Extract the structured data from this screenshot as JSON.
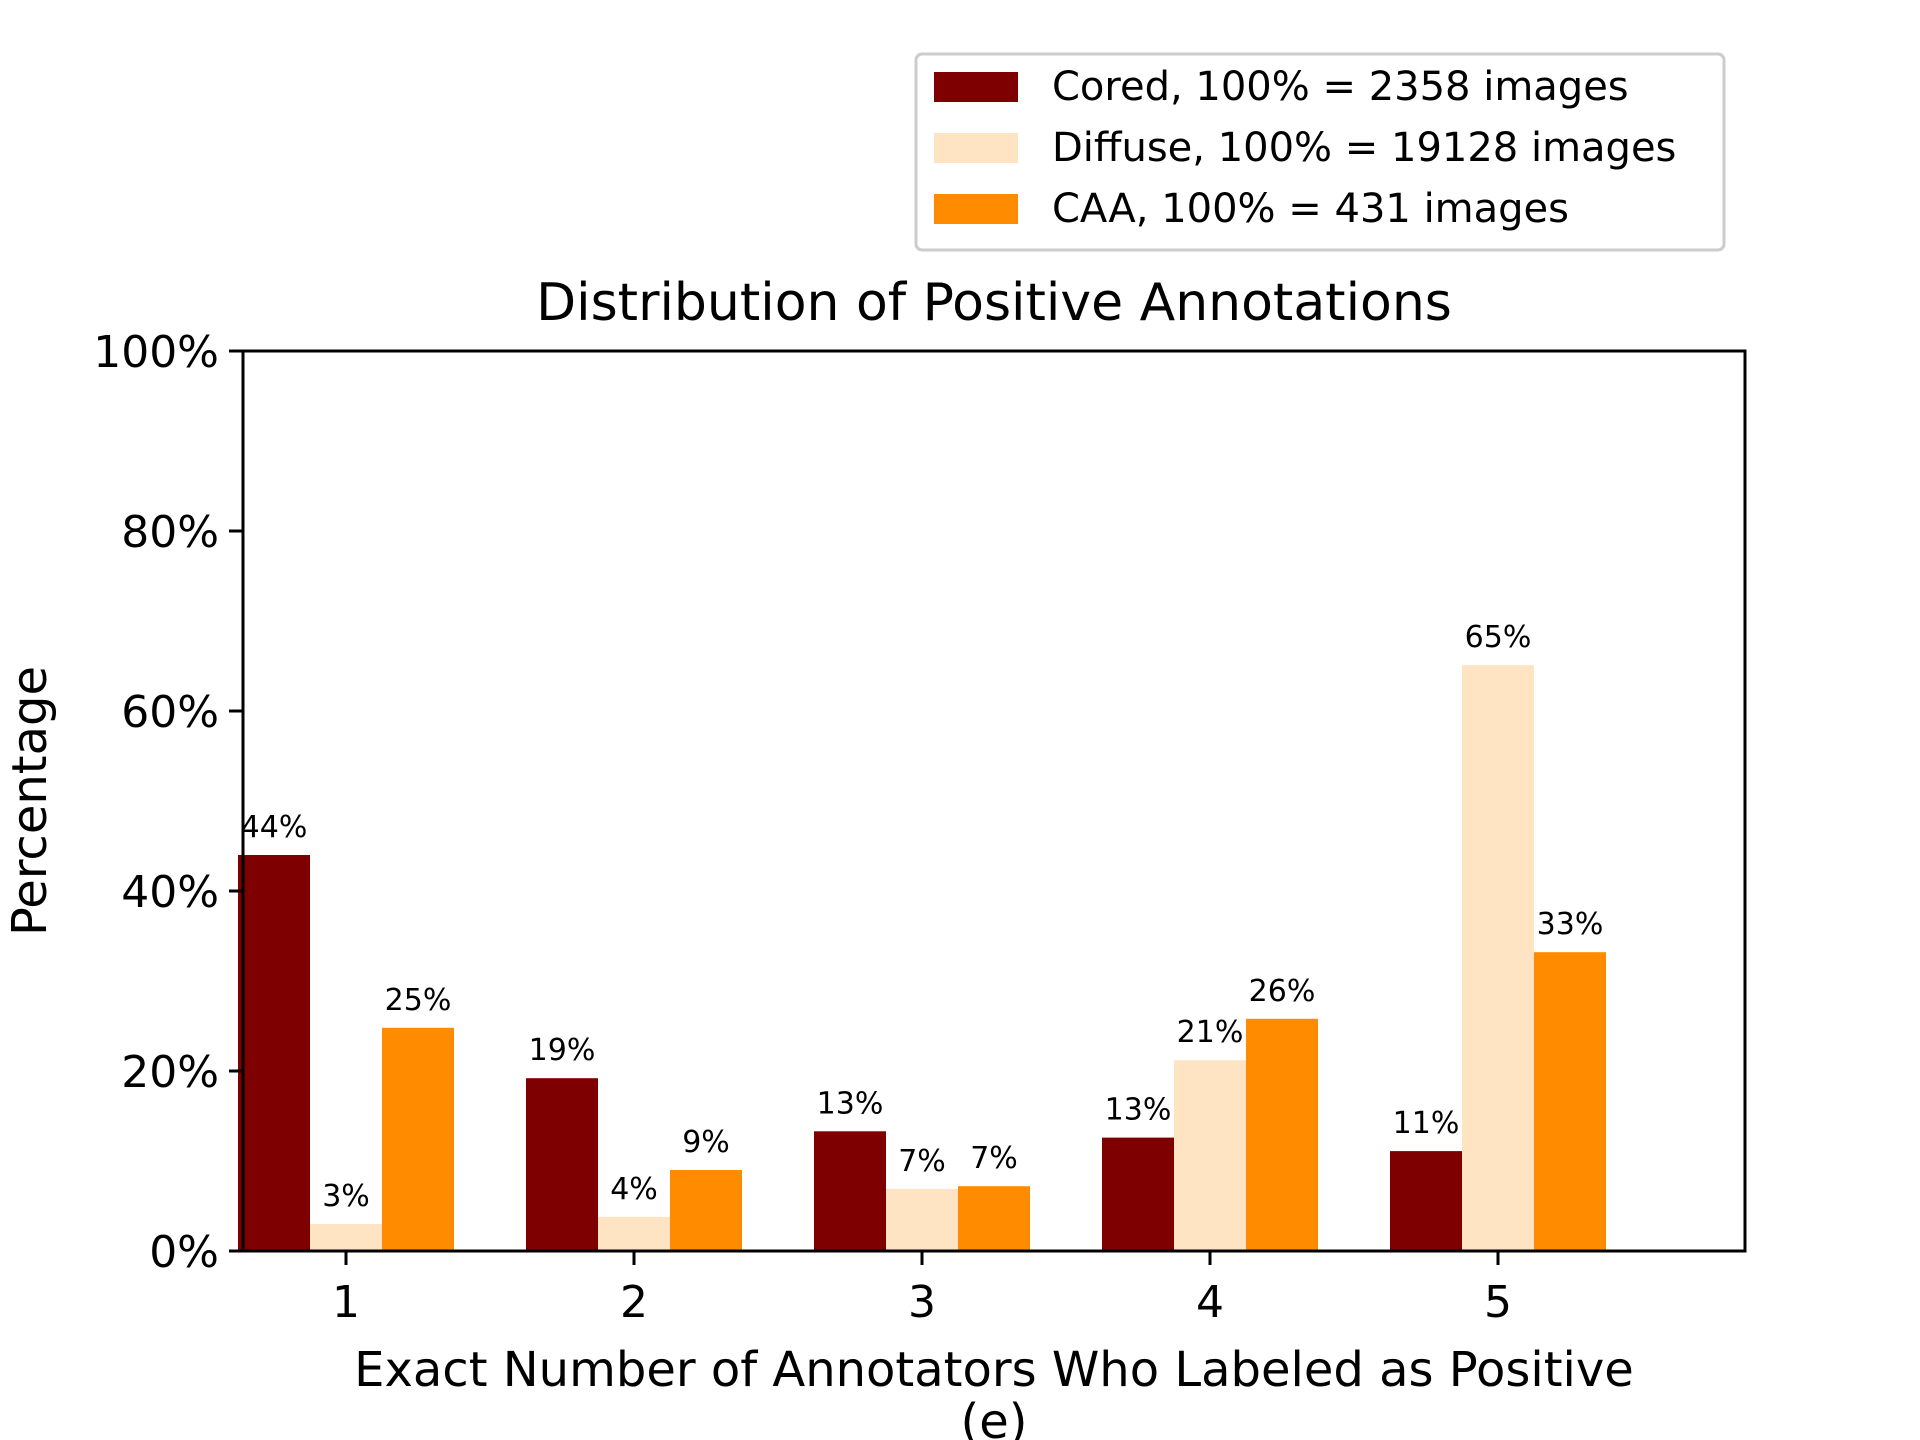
{
  "chart_data": {
    "type": "bar",
    "title": "Distribution of Positive Annotations",
    "xlabel": "Exact Number of Annotators Who Labeled as Positive",
    "xlabel_sub": "(e)",
    "ylabel": "Percentage",
    "categories": [
      "1",
      "2",
      "3",
      "4",
      "5"
    ],
    "ylim": [
      0,
      100
    ],
    "yticks": [
      0,
      20,
      40,
      60,
      80,
      100
    ],
    "ytick_labels": [
      "0%",
      "20%",
      "40%",
      "60%",
      "80%",
      "100%"
    ],
    "legend_position": "top-right, above plot",
    "grid": false,
    "series": [
      {
        "name": "Cored, 100% = 2358 images",
        "color": "#7f0000",
        "values": [
          44,
          19.2,
          13.3,
          12.6,
          11.1
        ],
        "labels": [
          "44%",
          "19%",
          "13%",
          "13%",
          "11%"
        ]
      },
      {
        "name": "Diffuse, 100% = 19128 images",
        "color": "#ffe4c4",
        "values": [
          3.0,
          3.8,
          6.9,
          21.2,
          65.1
        ],
        "labels": [
          "3%",
          "4%",
          "7%",
          "21%",
          "65%"
        ]
      },
      {
        "name": "CAA, 100% = 431 images",
        "color": "#ff8c00",
        "values": [
          24.8,
          9.0,
          7.2,
          25.8,
          33.2
        ],
        "labels": [
          "25%",
          "9%",
          "7%",
          "26%",
          "33%"
        ]
      }
    ]
  }
}
